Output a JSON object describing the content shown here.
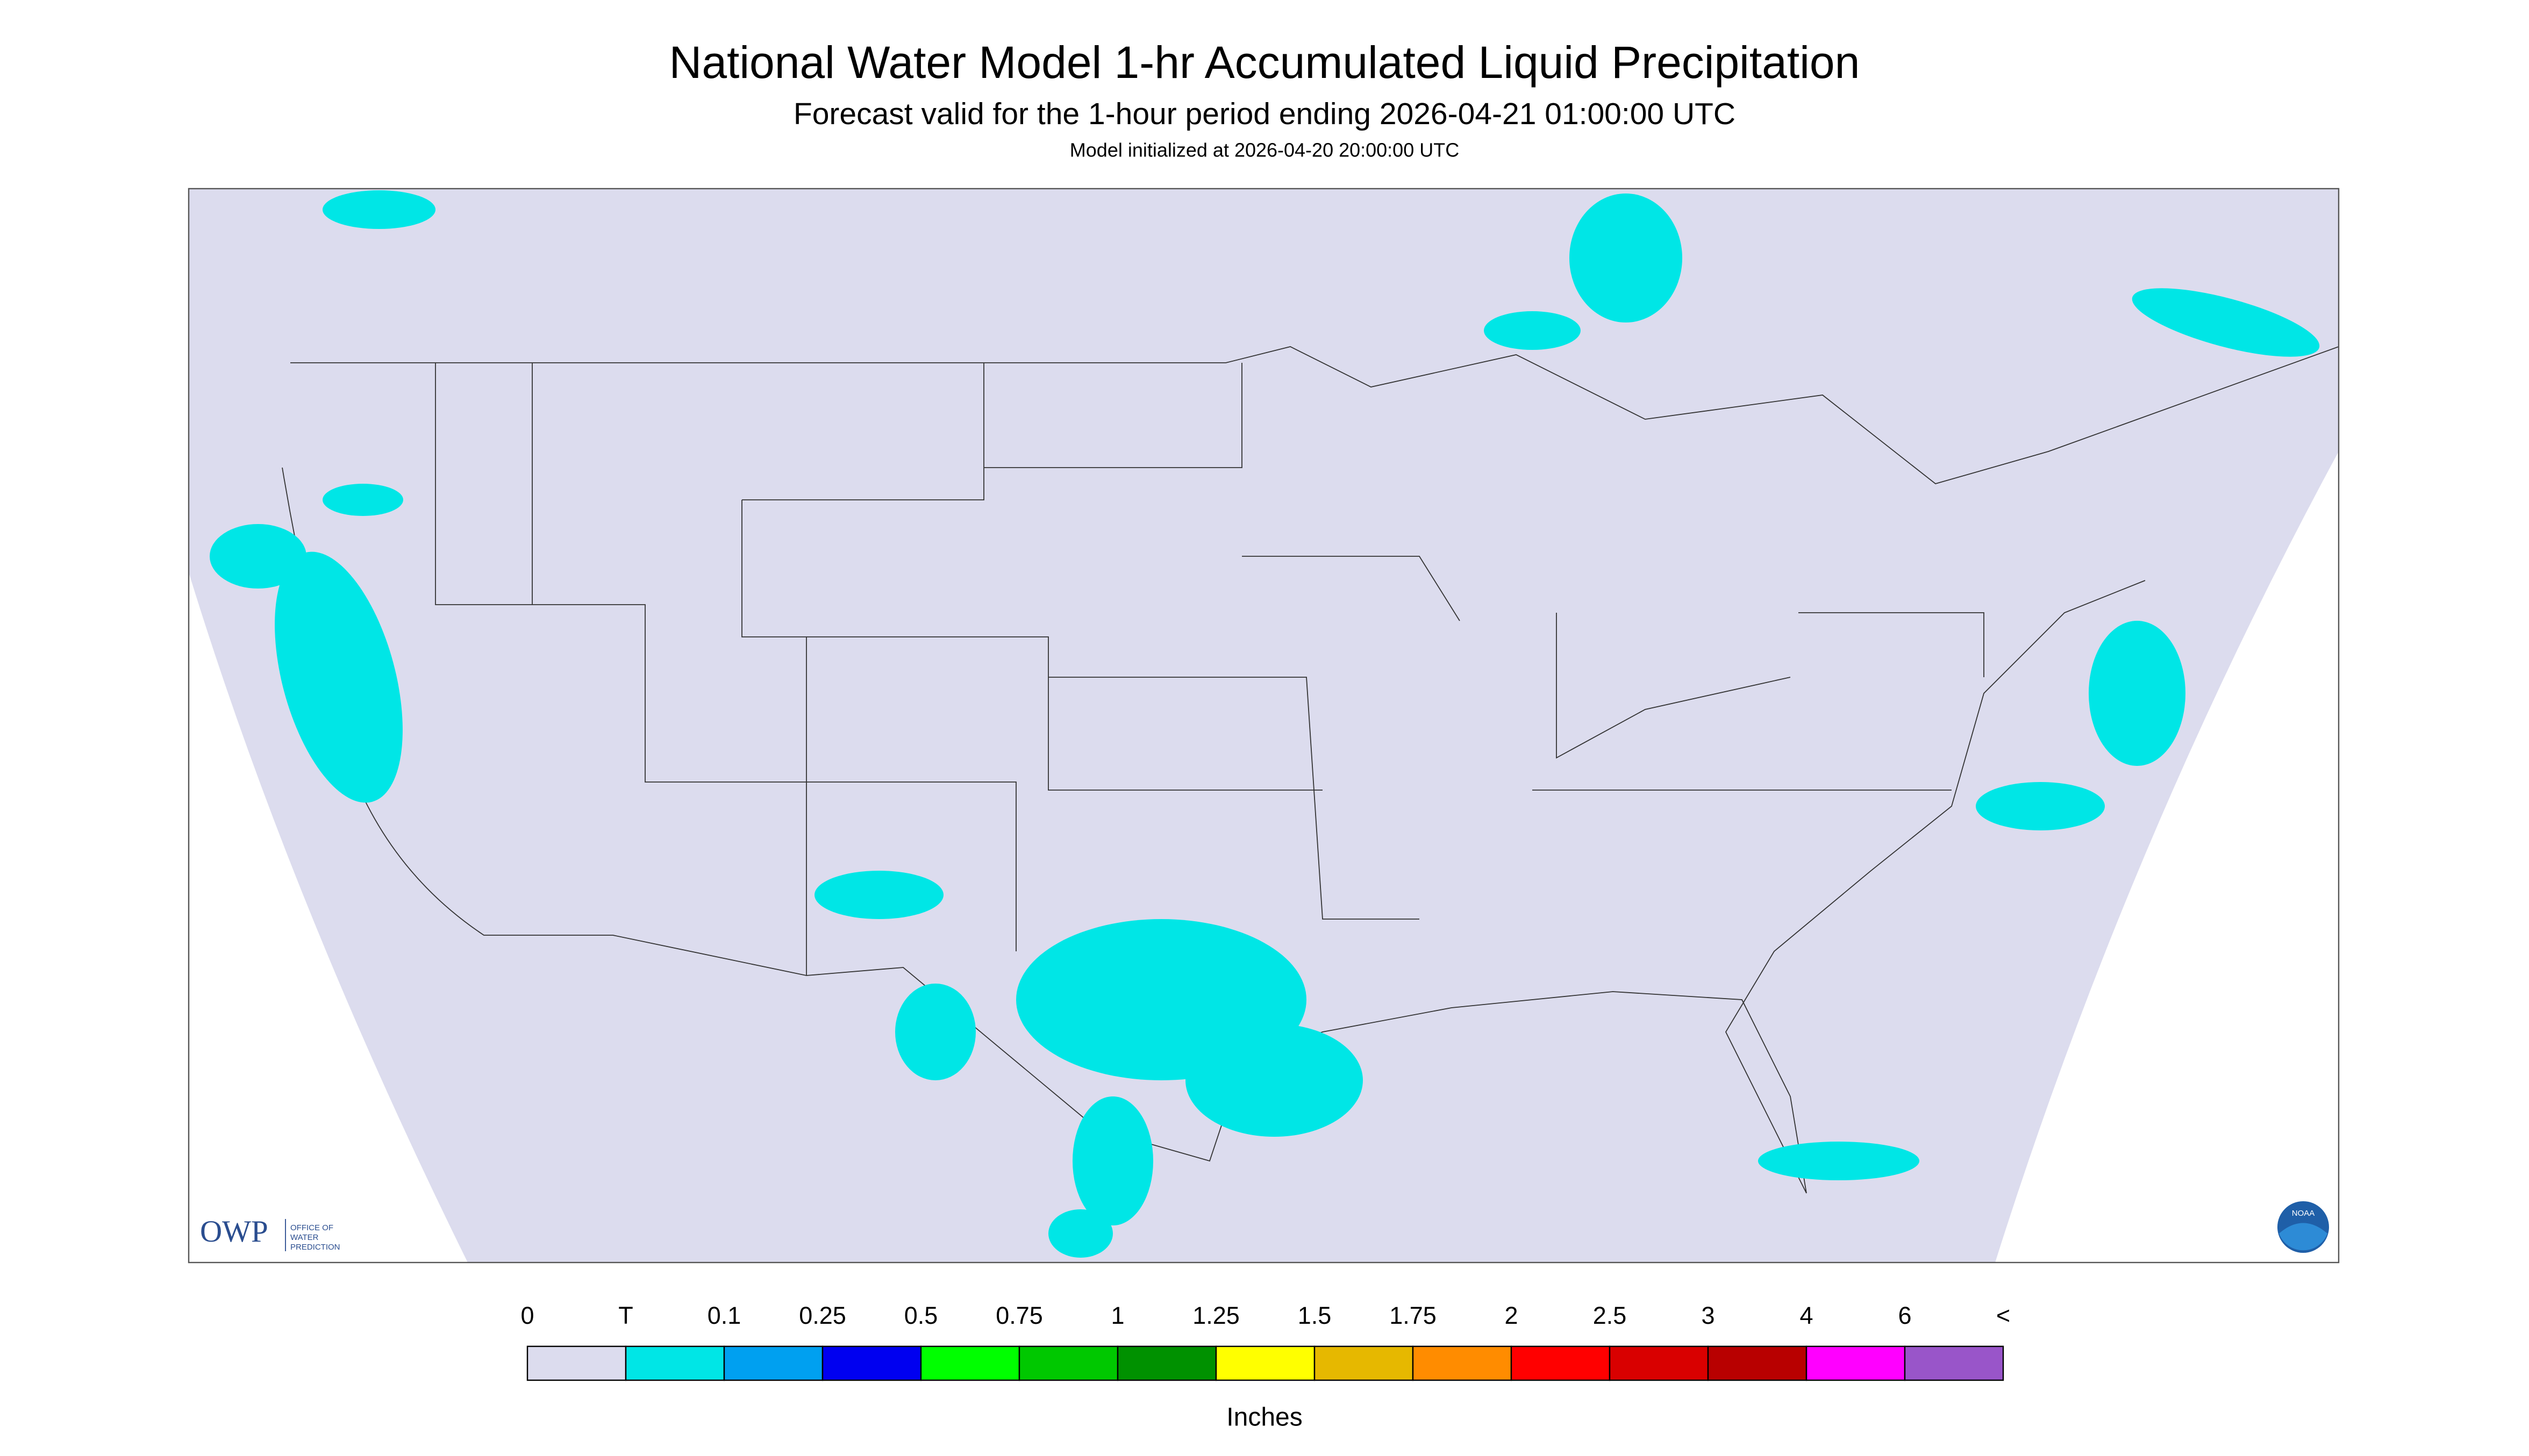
{
  "header": {
    "title": "National Water Model 1-hr Accumulated Liquid Precipitation",
    "subtitle": "Forecast valid for the 1-hour period ending 2026-04-21 01:00:00 UTC",
    "init": "Model initialized at 2026-04-20 20:00:00 UTC"
  },
  "logo": {
    "owp": "OWP",
    "office": [
      "OFFICE OF",
      "WATER",
      "PREDICTION"
    ],
    "noaa": "NOAA"
  },
  "legend": {
    "labels": [
      "0",
      "T",
      "0.1",
      "0.25",
      "0.5",
      "0.75",
      "1",
      "1.25",
      "1.5",
      "1.75",
      "2",
      "2.5",
      "3",
      "4",
      "6",
      "<"
    ],
    "colors": [
      "#dcdcee",
      "#00e6e6",
      "#00a0f0",
      "#0000f0",
      "#00ff00",
      "#00c800",
      "#009100",
      "#ffff00",
      "#e6b800",
      "#ff8c00",
      "#ff0000",
      "#d90000",
      "#b80000",
      "#ff00ff",
      "#9955c9"
    ],
    "unit": "Inches"
  }
}
